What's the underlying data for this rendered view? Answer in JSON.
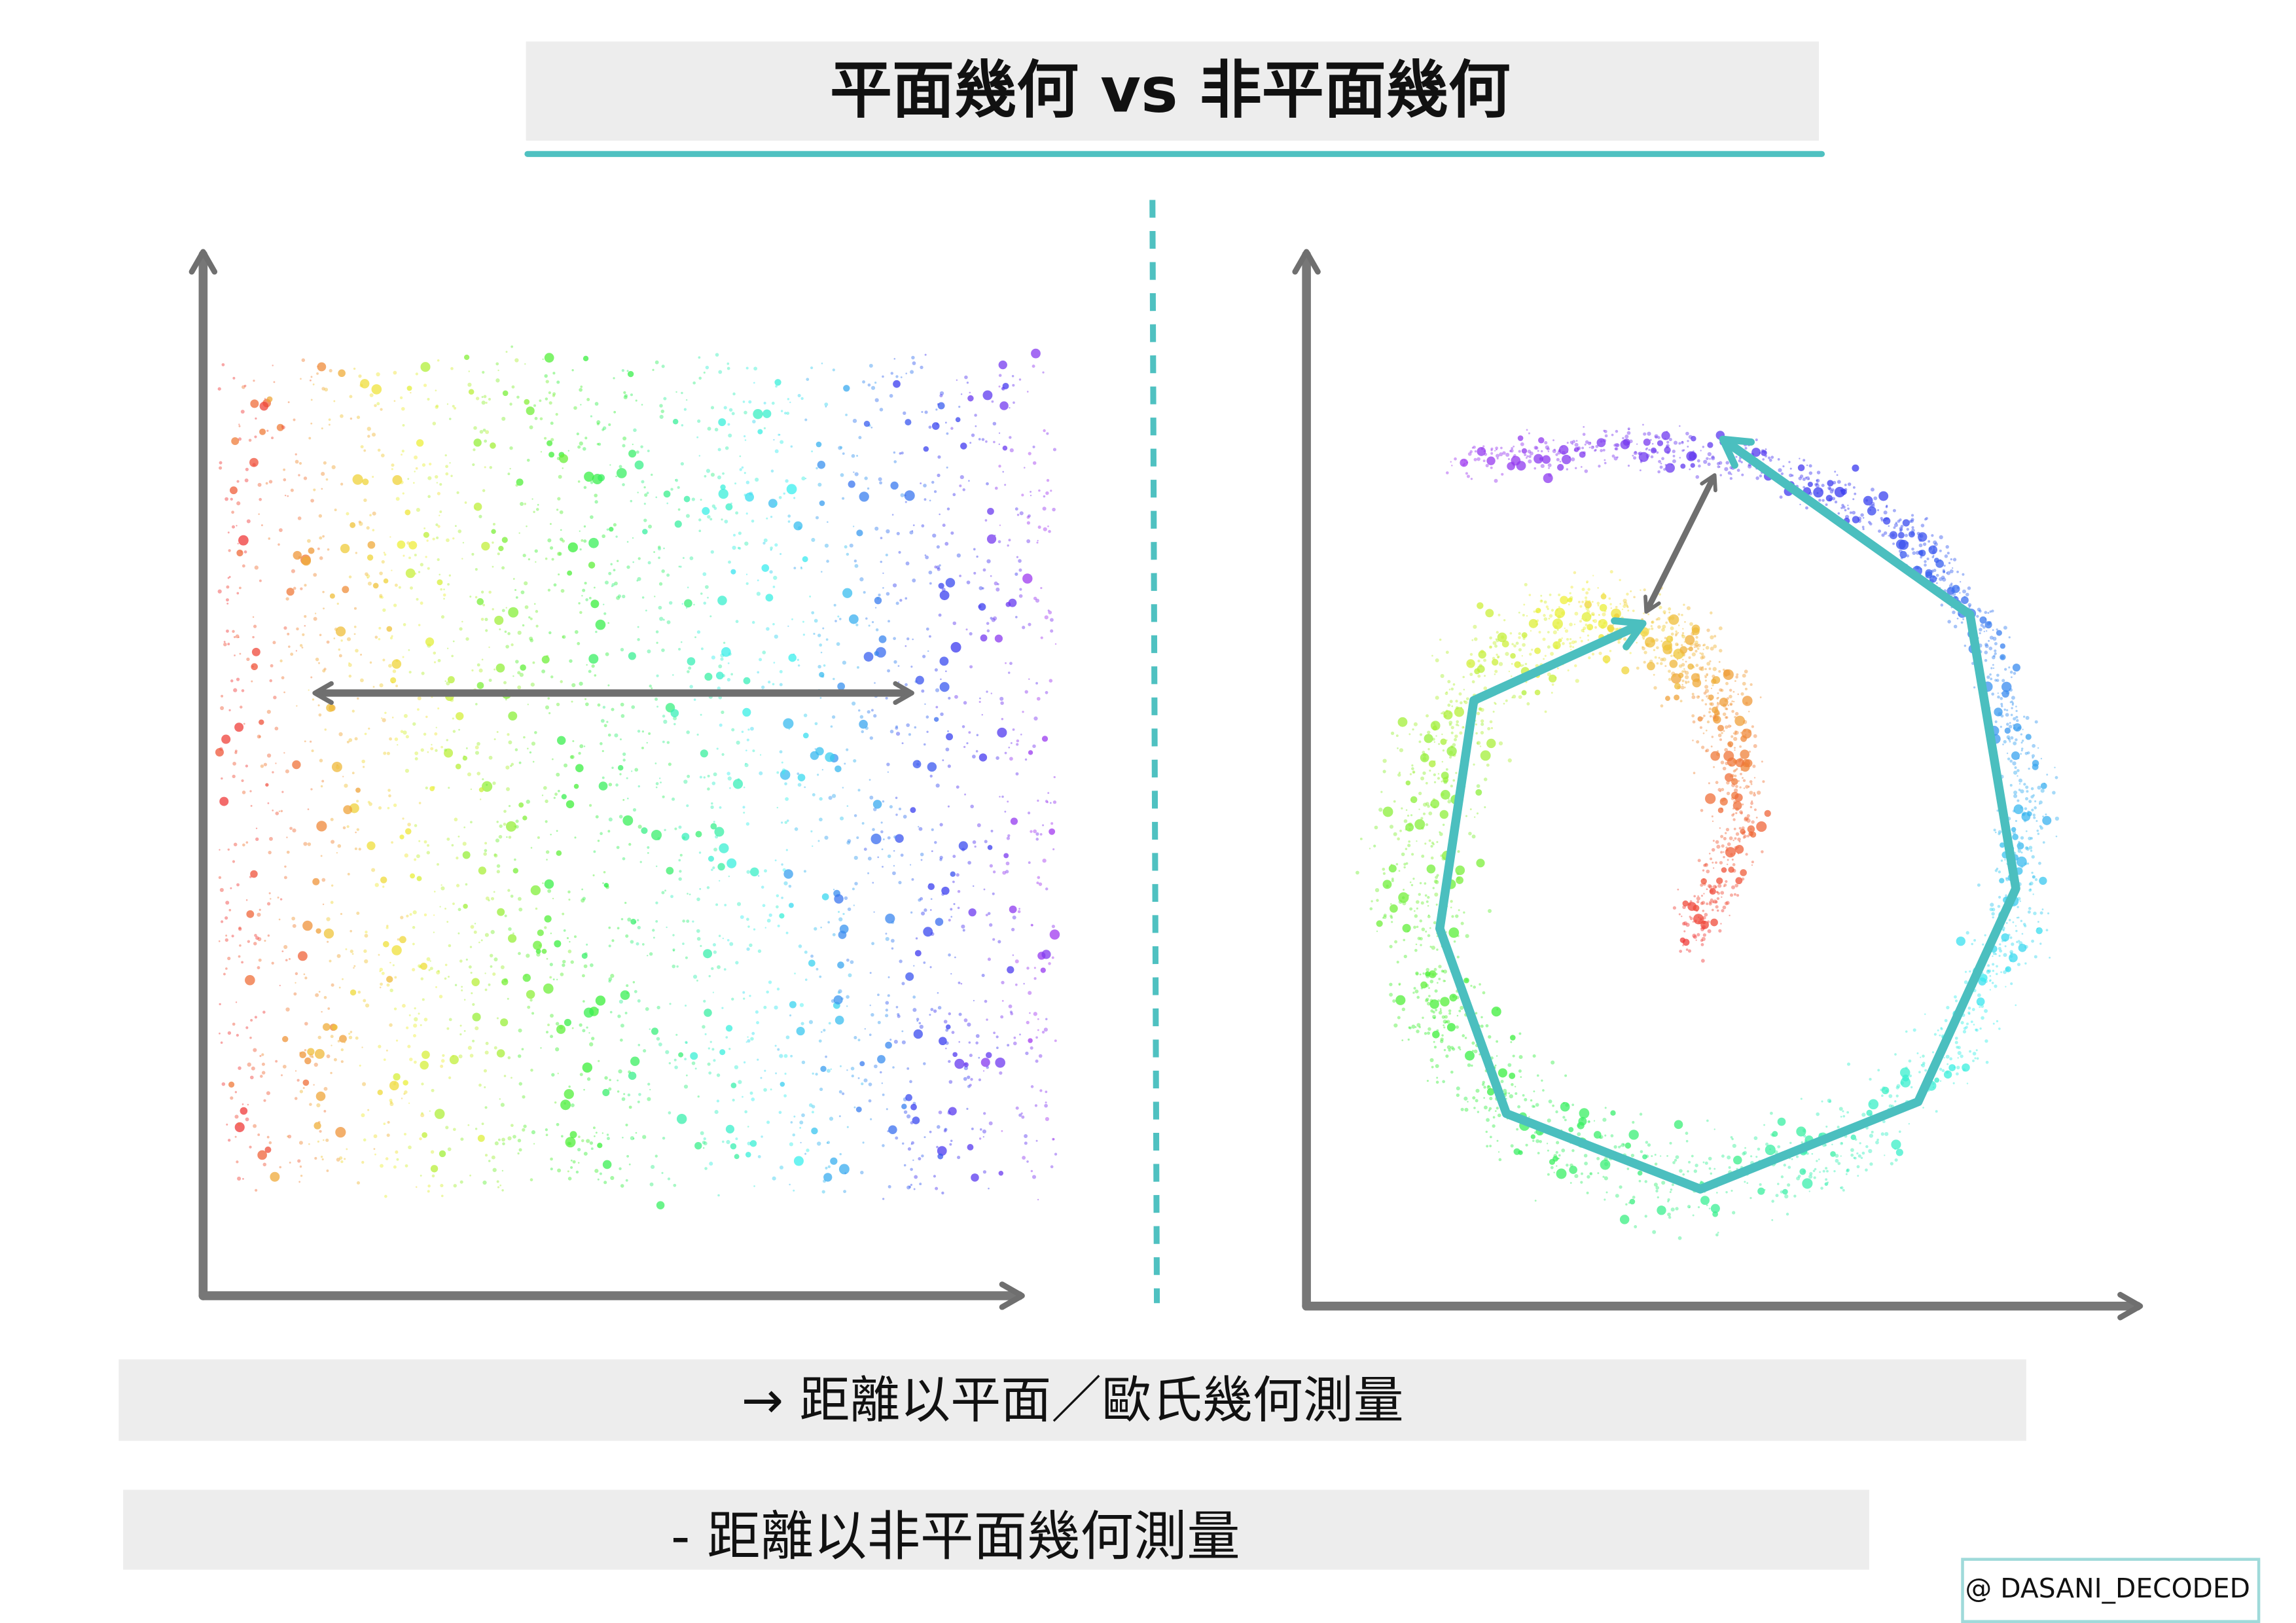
{
  "header": {
    "title": "平面幾何 vs 非平面幾何"
  },
  "captions": [
    "→ 距離以平面／歐氏幾何測量",
    "- 距離以非平面幾何測量"
  ],
  "watermark": "@ DASANI_DECODED"
}
